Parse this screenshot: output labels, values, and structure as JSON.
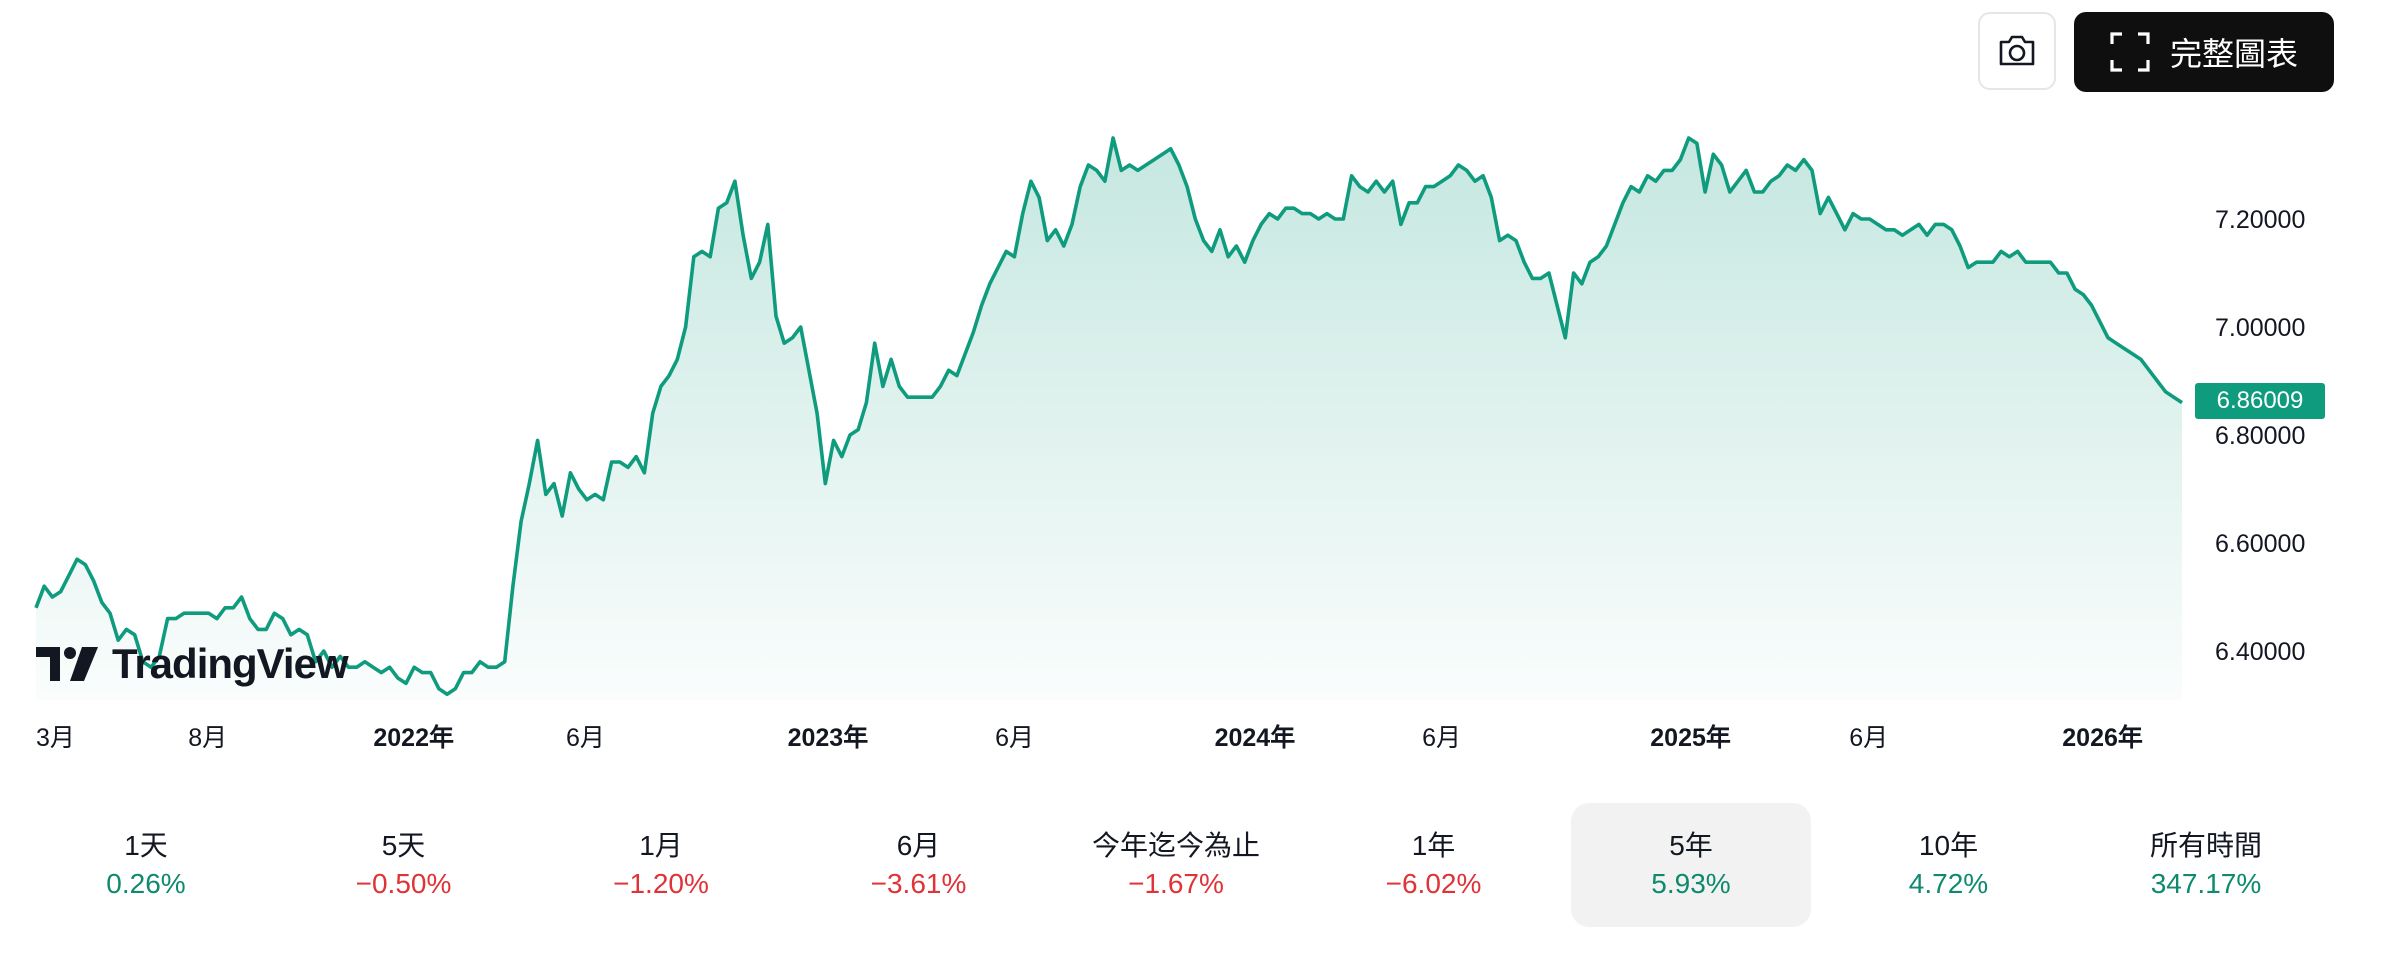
{
  "header": {
    "camera_label": "camera",
    "full_chart_label": "完整圖表"
  },
  "brand": {
    "logo_text": "TradingView"
  },
  "last_price_label": "6.86009",
  "chart_data": {
    "type": "area",
    "title": "",
    "ylim": [
      6.3,
      7.45
    ],
    "yticks": [
      6.4,
      6.6,
      6.8,
      7.0,
      7.2
    ],
    "ytick_labels": [
      "6.40000",
      "6.60000",
      "6.80000",
      "7.00000",
      "7.20000"
    ],
    "x_labels": [
      {
        "label": "3月",
        "t": 0.0,
        "bold": false
      },
      {
        "label": "8月",
        "t": 0.08,
        "bold": false
      },
      {
        "label": "2022年",
        "t": 0.176,
        "bold": true
      },
      {
        "label": "6月",
        "t": 0.256,
        "bold": false
      },
      {
        "label": "2023年",
        "t": 0.369,
        "bold": true
      },
      {
        "label": "6月",
        "t": 0.456,
        "bold": false
      },
      {
        "label": "2024年",
        "t": 0.568,
        "bold": true
      },
      {
        "label": "6月",
        "t": 0.655,
        "bold": false
      },
      {
        "label": "2025年",
        "t": 0.771,
        "bold": true
      },
      {
        "label": "6月",
        "t": 0.854,
        "bold": false
      },
      {
        "label": "2026年",
        "t": 0.963,
        "bold": true
      }
    ],
    "last_value": 6.86009,
    "color": "#0f9b7e",
    "values": [
      6.48,
      6.52,
      6.5,
      6.51,
      6.54,
      6.57,
      6.56,
      6.53,
      6.49,
      6.47,
      6.42,
      6.44,
      6.43,
      6.38,
      6.37,
      6.39,
      6.46,
      6.46,
      6.47,
      6.47,
      6.47,
      6.47,
      6.46,
      6.48,
      6.48,
      6.5,
      6.46,
      6.44,
      6.44,
      6.47,
      6.46,
      6.43,
      6.44,
      6.43,
      6.38,
      6.4,
      6.37,
      6.39,
      6.37,
      6.37,
      6.38,
      6.37,
      6.36,
      6.37,
      6.35,
      6.34,
      6.37,
      6.36,
      6.36,
      6.33,
      6.32,
      6.33,
      6.36,
      6.36,
      6.38,
      6.37,
      6.37,
      6.38,
      6.52,
      6.64,
      6.71,
      6.79,
      6.69,
      6.71,
      6.65,
      6.73,
      6.7,
      6.68,
      6.69,
      6.68,
      6.75,
      6.75,
      6.74,
      6.76,
      6.73,
      6.84,
      6.89,
      6.91,
      6.94,
      7.0,
      7.13,
      7.14,
      7.13,
      7.22,
      7.23,
      7.27,
      7.17,
      7.09,
      7.12,
      7.19,
      7.02,
      6.97,
      6.98,
      7.0,
      6.92,
      6.84,
      6.71,
      6.79,
      6.76,
      6.8,
      6.81,
      6.86,
      6.97,
      6.89,
      6.94,
      6.89,
      6.87,
      6.87,
      6.87,
      6.87,
      6.89,
      6.92,
      6.91,
      6.95,
      6.99,
      7.04,
      7.08,
      7.11,
      7.14,
      7.13,
      7.21,
      7.27,
      7.24,
      7.16,
      7.18,
      7.15,
      7.19,
      7.26,
      7.3,
      7.29,
      7.27,
      7.35,
      7.29,
      7.3,
      7.29,
      7.3,
      7.31,
      7.32,
      7.33,
      7.3,
      7.26,
      7.2,
      7.16,
      7.14,
      7.18,
      7.13,
      7.15,
      7.12,
      7.16,
      7.19,
      7.21,
      7.2,
      7.22,
      7.22,
      7.21,
      7.21,
      7.2,
      7.21,
      7.2,
      7.2,
      7.28,
      7.26,
      7.25,
      7.27,
      7.25,
      7.27,
      7.19,
      7.23,
      7.23,
      7.26,
      7.26,
      7.27,
      7.28,
      7.3,
      7.29,
      7.27,
      7.28,
      7.24,
      7.16,
      7.17,
      7.16,
      7.12,
      7.09,
      7.09,
      7.1,
      7.04,
      6.98,
      7.1,
      7.08,
      7.12,
      7.13,
      7.15,
      7.19,
      7.23,
      7.26,
      7.25,
      7.28,
      7.27,
      7.29,
      7.29,
      7.31,
      7.35,
      7.34,
      7.25,
      7.32,
      7.3,
      7.25,
      7.27,
      7.29,
      7.25,
      7.25,
      7.27,
      7.28,
      7.3,
      7.29,
      7.31,
      7.29,
      7.21,
      7.24,
      7.21,
      7.18,
      7.21,
      7.2,
      7.2,
      7.19,
      7.18,
      7.18,
      7.17,
      7.18,
      7.19,
      7.17,
      7.19,
      7.19,
      7.18,
      7.15,
      7.11,
      7.12,
      7.12,
      7.12,
      7.14,
      7.13,
      7.14,
      7.12,
      7.12,
      7.12,
      7.12,
      7.1,
      7.1,
      7.07,
      7.06,
      7.04,
      7.01,
      6.98,
      6.97,
      6.96,
      6.95,
      6.94,
      6.92,
      6.9,
      6.88,
      6.87,
      6.86
    ]
  },
  "periods": [
    {
      "label": "1天",
      "change": "0.26%",
      "dir": "pos",
      "active": false
    },
    {
      "label": "5天",
      "change": "−0.50%",
      "dir": "neg",
      "active": false
    },
    {
      "label": "1月",
      "change": "−1.20%",
      "dir": "neg",
      "active": false
    },
    {
      "label": "6月",
      "change": "−3.61%",
      "dir": "neg",
      "active": false
    },
    {
      "label": "今年迄今為止",
      "change": "−1.67%",
      "dir": "neg",
      "active": false
    },
    {
      "label": "1年",
      "change": "−6.02%",
      "dir": "neg",
      "active": false
    },
    {
      "label": "5年",
      "change": "5.93%",
      "dir": "pos",
      "active": true
    },
    {
      "label": "10年",
      "change": "4.72%",
      "dir": "pos",
      "active": false
    },
    {
      "label": "所有時間",
      "change": "347.17%",
      "dir": "pos",
      "active": false
    }
  ]
}
